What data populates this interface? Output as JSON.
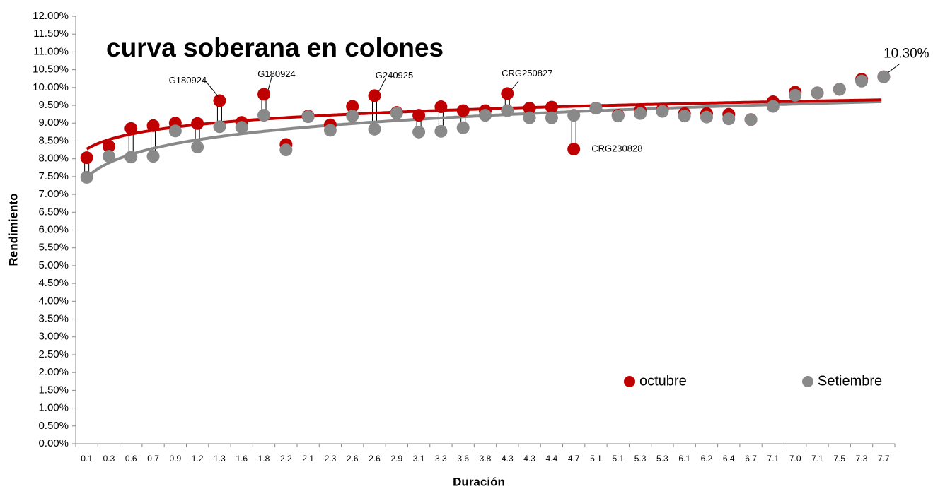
{
  "chart_data": {
    "type": "dot",
    "title": "curva soberana en colones",
    "x_label": "Duración",
    "y_label": "Rendimiento",
    "categories": [
      "0.1",
      "0.3",
      "0.6",
      "0.7",
      "0.9",
      "1.2",
      "1.3",
      "1.6",
      "1.8",
      "2.2",
      "2.1",
      "2.3",
      "2.6",
      "2.6",
      "2.9",
      "3.1",
      "3.3",
      "3.6",
      "3.8",
      "4.3",
      "4.3",
      "4.4",
      "4.7",
      "5.1",
      "5.1",
      "5.3",
      "5.3",
      "6.1",
      "6.2",
      "6.4",
      "6.7",
      "7.1",
      "7.0",
      "7.1",
      "7.5",
      "7.3",
      "7.7"
    ],
    "series": [
      {
        "name": "octubre",
        "color": "#c00000",
        "values": [
          8.03,
          8.35,
          8.85,
          8.93,
          9.0,
          8.99,
          9.63,
          9.02,
          9.81,
          8.4,
          9.2,
          8.95,
          9.47,
          9.77,
          9.3,
          9.22,
          9.46,
          9.35,
          9.35,
          9.83,
          9.42,
          9.45,
          8.27,
          9.42,
          9.22,
          9.35,
          9.38,
          9.27,
          9.27,
          9.25,
          9.1,
          9.6,
          9.87,
          9.85,
          9.95,
          10.23,
          10.3
        ]
      },
      {
        "name": "Setiembre",
        "color": "#898989",
        "values": [
          7.48,
          8.07,
          8.05,
          8.07,
          8.78,
          8.33,
          8.9,
          8.88,
          9.22,
          8.25,
          9.18,
          8.8,
          9.2,
          8.83,
          9.28,
          8.75,
          8.77,
          8.87,
          9.22,
          9.35,
          9.15,
          9.15,
          9.22,
          9.42,
          9.2,
          9.27,
          9.33,
          9.2,
          9.17,
          9.12,
          9.1,
          9.47,
          9.78,
          9.85,
          9.95,
          10.18,
          10.3
        ]
      }
    ],
    "trendline": "logarithmic",
    "high_low_lines": true,
    "annotations": [
      {
        "text": "G180924",
        "point": 6
      },
      {
        "text": "G180924",
        "point": 8
      },
      {
        "text": "G240925",
        "point": 13
      },
      {
        "text": "CRG250827",
        "point": 19
      },
      {
        "text": "CRG230828",
        "point": 22
      },
      {
        "text": "10.30%",
        "point": 36
      }
    ],
    "legend": "lower right",
    "ylim": [
      0,
      12
    ],
    "yticks": [
      {
        "value": 0,
        "label": "0.00%"
      },
      {
        "value": 0.5,
        "label": "0.50%"
      },
      {
        "value": 1,
        "label": "1.00%"
      },
      {
        "value": 1.5,
        "label": "1.50%"
      },
      {
        "value": 2,
        "label": "2.00%"
      },
      {
        "value": 2.5,
        "label": "2.50%"
      },
      {
        "value": 3,
        "label": "3.00%"
      },
      {
        "value": 3.5,
        "label": "3.50%"
      },
      {
        "value": 4,
        "label": "4.00%"
      },
      {
        "value": 4.5,
        "label": "4.50%"
      },
      {
        "value": 5,
        "label": "5.00%"
      },
      {
        "value": 5.5,
        "label": "5.50%"
      },
      {
        "value": 6,
        "label": "6.00%"
      },
      {
        "value": 6.5,
        "label": "6.50%"
      },
      {
        "value": 7,
        "label": "7.00%"
      },
      {
        "value": 7.5,
        "label": "7.50%"
      },
      {
        "value": 8,
        "label": "8.00%"
      },
      {
        "value": 8.5,
        "label": "8.50%"
      },
      {
        "value": 9,
        "label": "9.00%"
      },
      {
        "value": 9.5,
        "label": "9.50%"
      },
      {
        "value": 10,
        "label": "10.00%"
      },
      {
        "value": 10.5,
        "label": "10.50%"
      },
      {
        "value": 11,
        "label": "11.00%"
      },
      {
        "value": 11.5,
        "label": "11.50%"
      },
      {
        "value": 12,
        "label": "12.00%"
      }
    ]
  }
}
